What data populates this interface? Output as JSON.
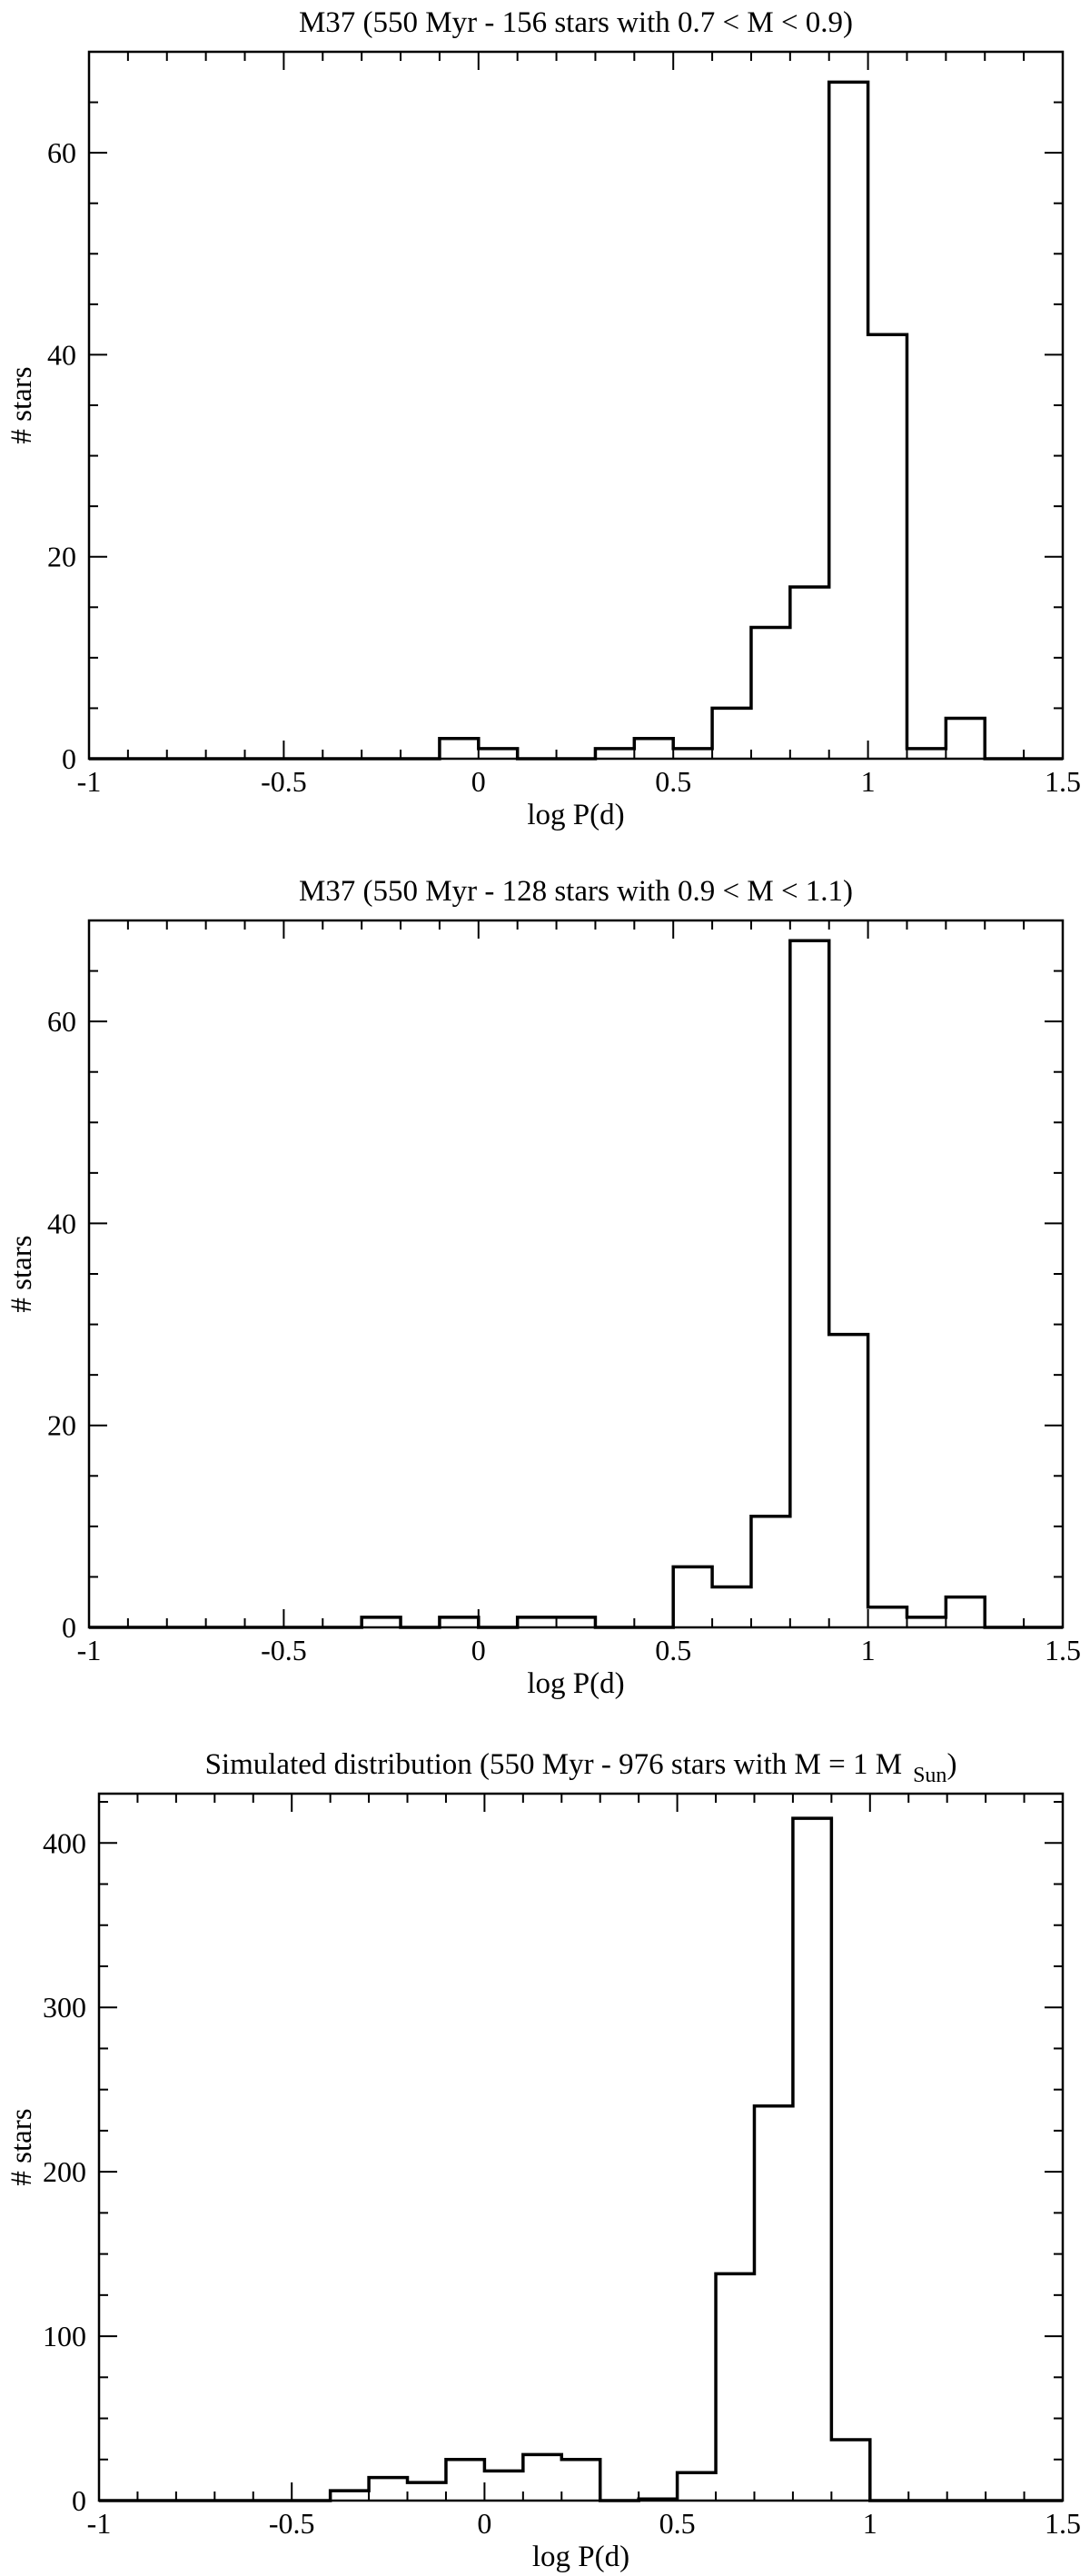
{
  "chart_data": [
    {
      "type": "bar",
      "histogram": true,
      "title": "M37 (550 Myr - 156 stars with 0.7 < M < 0.9)",
      "xlabel": "log P(d)",
      "ylabel": "# stars",
      "xlim": [
        -1,
        1.5
      ],
      "ylim": [
        0,
        70
      ],
      "x_ticks": [
        -1,
        -0.5,
        0,
        0.5,
        1,
        1.5
      ],
      "x_tick_labels": [
        "-1",
        "-0.5",
        "0",
        "0.5",
        "1",
        "1.5"
      ],
      "y_ticks": [
        0,
        20,
        40,
        60
      ],
      "y_tick_labels": [
        "0",
        "20",
        "40",
        "60"
      ],
      "bin_edges": [
        -1.0,
        -0.9,
        -0.8,
        -0.7,
        -0.6,
        -0.5,
        -0.4,
        -0.3,
        -0.2,
        -0.1,
        0.0,
        0.1,
        0.2,
        0.3,
        0.4,
        0.5,
        0.6,
        0.7,
        0.8,
        0.9,
        1.0,
        1.1,
        1.2,
        1.3,
        1.4,
        1.5
      ],
      "values": [
        0,
        0,
        0,
        0,
        0,
        0,
        0,
        0,
        0,
        2,
        1,
        0,
        0,
        1,
        2,
        1,
        5,
        13,
        17,
        67,
        42,
        1,
        4,
        0,
        0
      ],
      "grid": false
    },
    {
      "type": "bar",
      "histogram": true,
      "title": "M37 (550 Myr - 128 stars with 0.9 < M < 1.1)",
      "xlabel": "log P(d)",
      "ylabel": "# stars",
      "xlim": [
        -1,
        1.5
      ],
      "ylim": [
        0,
        70
      ],
      "x_ticks": [
        -1,
        -0.5,
        0,
        0.5,
        1,
        1.5
      ],
      "x_tick_labels": [
        "-1",
        "-0.5",
        "0",
        "0.5",
        "1",
        "1.5"
      ],
      "y_ticks": [
        0,
        20,
        40,
        60
      ],
      "y_tick_labels": [
        "0",
        "20",
        "40",
        "60"
      ],
      "bin_edges": [
        -1.0,
        -0.9,
        -0.8,
        -0.7,
        -0.6,
        -0.5,
        -0.4,
        -0.3,
        -0.2,
        -0.1,
        0.0,
        0.1,
        0.2,
        0.3,
        0.4,
        0.5,
        0.6,
        0.7,
        0.8,
        0.9,
        1.0,
        1.1,
        1.2,
        1.3,
        1.4,
        1.5
      ],
      "values": [
        0,
        0,
        0,
        0,
        0,
        0,
        0,
        1,
        0,
        1,
        0,
        1,
        1,
        0,
        0,
        6,
        4,
        11,
        68,
        29,
        2,
        1,
        3,
        0,
        0
      ],
      "grid": false
    },
    {
      "type": "bar",
      "histogram": true,
      "title": "Simulated distribution (550 Myr - 976 stars with M = 1 M",
      "title_subscript": "Sun",
      "title_suffix": ")",
      "xlabel": "log P(d)",
      "ylabel": "# stars",
      "xlim": [
        -1,
        1.5
      ],
      "ylim": [
        0,
        430
      ],
      "x_ticks": [
        -1,
        -0.5,
        0,
        0.5,
        1,
        1.5
      ],
      "x_tick_labels": [
        "-1",
        "-0.5",
        "0",
        "0.5",
        "1",
        "1.5"
      ],
      "y_ticks": [
        0,
        100,
        200,
        300,
        400
      ],
      "y_tick_labels": [
        "0",
        "100",
        "200",
        "300",
        "400"
      ],
      "bin_edges": [
        -1.0,
        -0.9,
        -0.8,
        -0.7,
        -0.6,
        -0.5,
        -0.4,
        -0.3,
        -0.2,
        -0.1,
        0.0,
        0.1,
        0.2,
        0.3,
        0.4,
        0.5,
        0.6,
        0.7,
        0.8,
        0.9,
        1.0,
        1.1,
        1.2,
        1.3,
        1.4,
        1.5
      ],
      "values": [
        0,
        0,
        0,
        0,
        0,
        0,
        6,
        14,
        11,
        25,
        18,
        28,
        25,
        0,
        1,
        17,
        138,
        240,
        415,
        37,
        0,
        0,
        0,
        0,
        0
      ],
      "grid": false
    }
  ]
}
